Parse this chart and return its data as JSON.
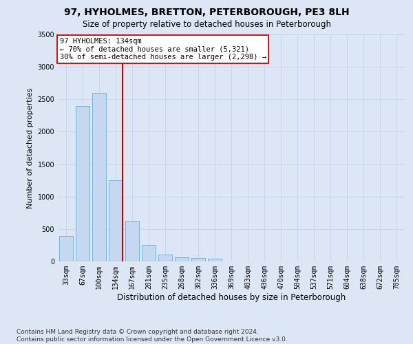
{
  "title": "97, HYHOLMES, BRETTON, PETERBOROUGH, PE3 8LH",
  "subtitle": "Size of property relative to detached houses in Peterborough",
  "xlabel": "Distribution of detached houses by size in Peterborough",
  "ylabel": "Number of detached properties",
  "categories": [
    "33sqm",
    "67sqm",
    "100sqm",
    "134sqm",
    "167sqm",
    "201sqm",
    "235sqm",
    "268sqm",
    "302sqm",
    "336sqm",
    "369sqm",
    "403sqm",
    "436sqm",
    "470sqm",
    "504sqm",
    "537sqm",
    "571sqm",
    "604sqm",
    "638sqm",
    "672sqm",
    "705sqm"
  ],
  "values": [
    390,
    2400,
    2600,
    1250,
    630,
    255,
    110,
    65,
    55,
    40,
    0,
    0,
    0,
    0,
    0,
    0,
    0,
    0,
    0,
    0,
    0
  ],
  "bar_color": "#c5d8f0",
  "bar_edge_color": "#6aaad4",
  "vline_color": "#cc0000",
  "vline_bar_index": 3,
  "annotation_line1": "97 HYHOLMES: 134sqm",
  "annotation_line2": "← 70% of detached houses are smaller (5,321)",
  "annotation_line3": "30% of semi-detached houses are larger (2,298) →",
  "annotation_box_color": "#ffffff",
  "annotation_box_edge": "#cc0000",
  "ylim": [
    0,
    3500
  ],
  "yticks": [
    0,
    500,
    1000,
    1500,
    2000,
    2500,
    3000,
    3500
  ],
  "footer": "Contains HM Land Registry data © Crown copyright and database right 2024.\nContains public sector information licensed under the Open Government Licence v3.0.",
  "background_color": "#dce6f5",
  "grid_color": "#c8d6eb",
  "title_fontsize": 10,
  "subtitle_fontsize": 8.5,
  "ylabel_fontsize": 8,
  "xlabel_fontsize": 8.5,
  "tick_fontsize": 7,
  "footer_fontsize": 6.5,
  "annotation_fontsize": 7.5
}
